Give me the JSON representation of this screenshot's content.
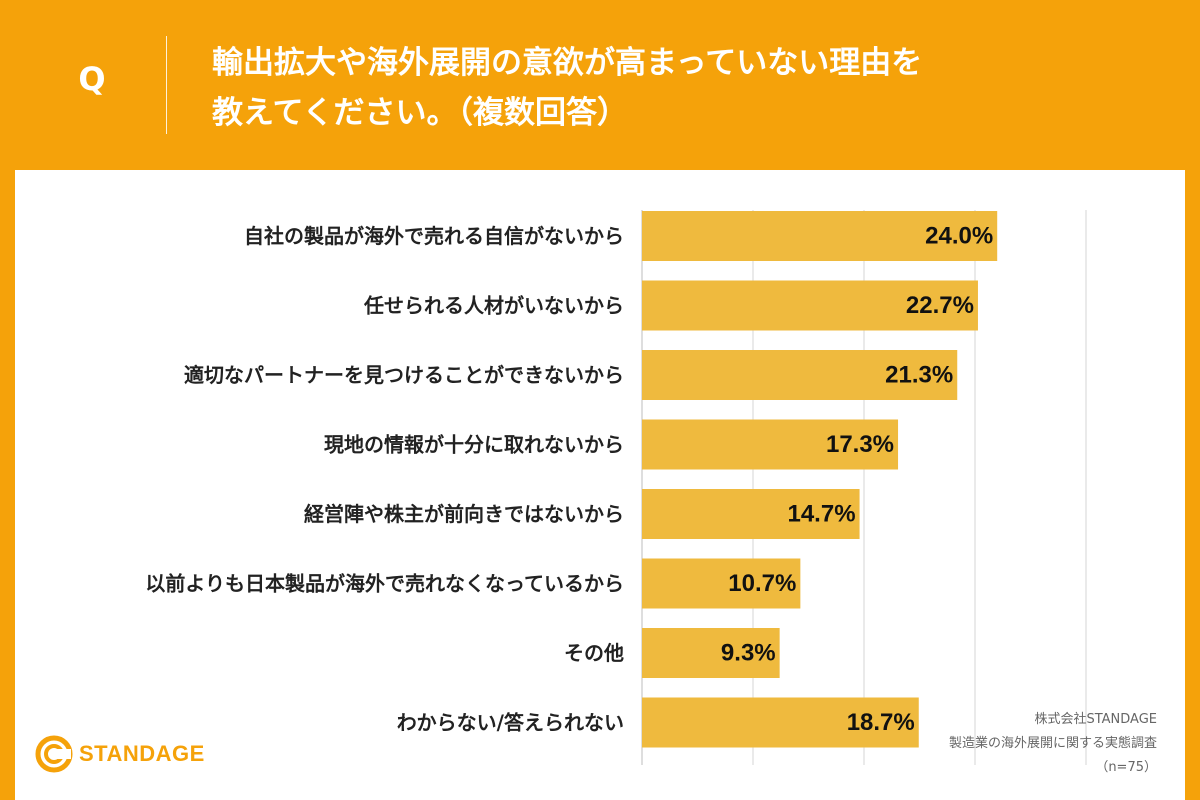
{
  "header": {
    "q_label": "Q",
    "question_line1": "輸出拡大や海外展開の意欲が高まっていない理由を",
    "question_line2": "教えてください。（複数回答）"
  },
  "brand": {
    "name": "STANDAGE",
    "icon": "standage-logo-icon",
    "accent": "#F5A20A",
    "bar_color": "#EFBA3E"
  },
  "source": {
    "company": "株式会社STANDAGE",
    "survey": "製造業の海外展開に関する実態調査",
    "sample": "（n=75）"
  },
  "chart_data": {
    "type": "bar",
    "orientation": "horizontal",
    "title": "輸出拡大や海外展開の意欲が高まっていない理由を教えてください。（複数回答）",
    "categories": [
      "自社の製品が海外で売れる自信がないから",
      "任せられる人材がいないから",
      "適切なパートナーを見つけることができないから",
      "現地の情報が十分に取れないから",
      "経営陣や株主が前向きではないから",
      "以前よりも日本製品が海外で売れなくなっているから",
      "その他",
      "わからない/答えられない"
    ],
    "values": [
      24.0,
      22.7,
      21.3,
      17.3,
      14.7,
      10.7,
      9.3,
      18.7
    ],
    "value_labels": [
      "24.0%",
      "22.7%",
      "21.3%",
      "17.3%",
      "14.7%",
      "10.7%",
      "9.3%",
      "18.7%"
    ],
    "xlim": [
      0,
      40
    ],
    "grid_step": 7.5,
    "grid": true,
    "xlabel": "",
    "ylabel": ""
  }
}
